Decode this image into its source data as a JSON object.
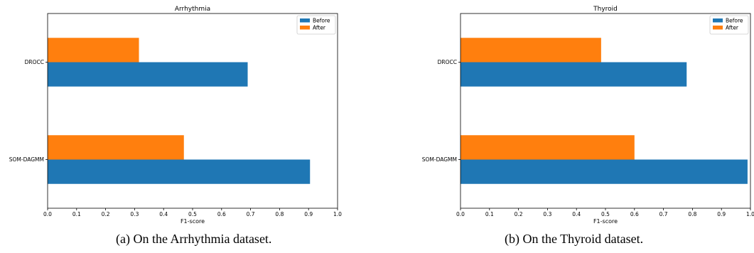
{
  "chart_data": [
    {
      "type": "bar",
      "orientation": "horizontal",
      "title": "Arrhythmia",
      "xlabel": "F1-score",
      "ylabel": "",
      "categories": [
        "SOM-DAGMM",
        "DROCC"
      ],
      "series": [
        {
          "name": "Before",
          "values": [
            0.905,
            0.69
          ],
          "color": "#1f77b4"
        },
        {
          "name": "After",
          "values": [
            0.47,
            0.315
          ],
          "color": "#ff7f0e"
        }
      ],
      "xlim": [
        0.0,
        1.0
      ],
      "xticks": [
        "0.0",
        "0.1",
        "0.2",
        "0.3",
        "0.4",
        "0.5",
        "0.6",
        "0.7",
        "0.8",
        "0.9",
        "1.0"
      ],
      "grid": false,
      "legend": "top-right"
    },
    {
      "type": "bar",
      "orientation": "horizontal",
      "title": "Thyroid",
      "xlabel": "F1-score",
      "ylabel": "",
      "categories": [
        "SOM-DAGMM",
        "DROCC"
      ],
      "series": [
        {
          "name": "Before",
          "values": [
            0.99,
            0.78
          ],
          "color": "#1f77b4"
        },
        {
          "name": "After",
          "values": [
            0.6,
            0.485
          ],
          "color": "#ff7f0e"
        }
      ],
      "xlim": [
        0.0,
        1.0
      ],
      "xticks": [
        "0.0",
        "0.1",
        "0.2",
        "0.3",
        "0.4",
        "0.5",
        "0.6",
        "0.7",
        "0.8",
        "0.9",
        "1.0"
      ],
      "grid": false,
      "legend": "top-right"
    }
  ],
  "captions": [
    "(a) On the Arrhythmia dataset.",
    "(b) On the Thyroid dataset."
  ]
}
